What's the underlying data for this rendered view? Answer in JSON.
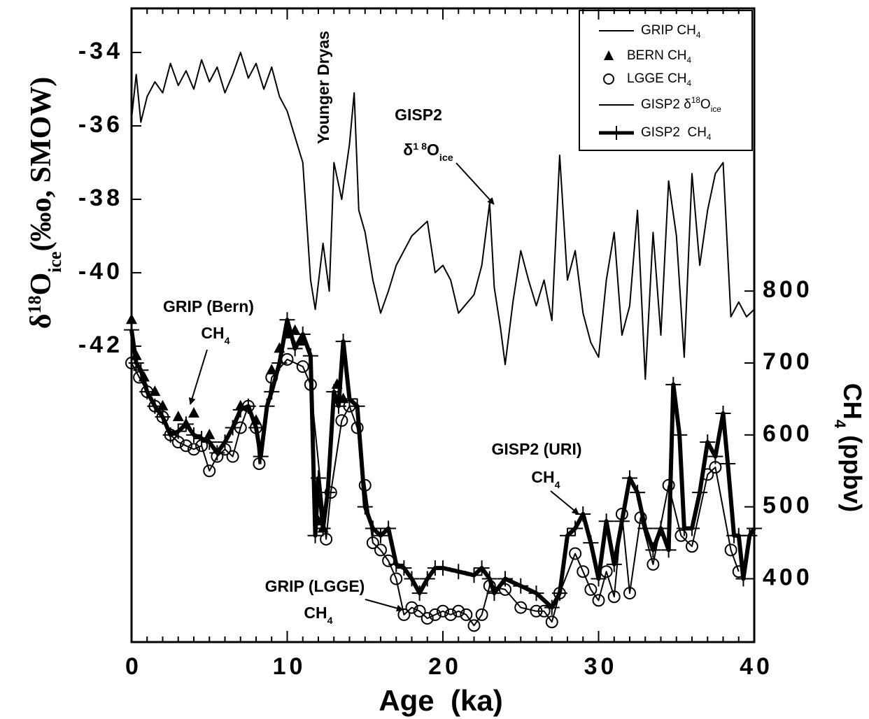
{
  "chart_data": {
    "type": "line",
    "x_label": "Age  (ka)",
    "y_label": [
      {
        "t": "δ"
      },
      {
        "t": "18",
        "sup": true
      },
      {
        "t": "O"
      },
      {
        "t": "ice",
        "sub": true
      },
      {
        "t": "(‰o, SMOW)"
      }
    ],
    "y2_label": [
      {
        "t": "CH"
      },
      {
        "t": "4",
        "sub": true
      },
      {
        "t": " (ppbv)"
      }
    ],
    "xlim": [
      0,
      40
    ],
    "xticks": [
      0,
      10,
      20,
      30,
      40
    ],
    "ylim": [
      -50.06,
      -32.8
    ],
    "yticks": [
      -42,
      -40,
      -38,
      -36,
      -34
    ],
    "y2lim": [
      312,
      1193
    ],
    "y2ticks": [
      400,
      500,
      600,
      700,
      800
    ],
    "legend": "upper right",
    "series": [
      {
        "name": [
          {
            "t": "GRIP CH"
          },
          {
            "t": "4",
            "sub": true
          }
        ],
        "marker": "line",
        "axis": "y2",
        "color": "#000000",
        "width": 2,
        "x": [
          0,
          0.5,
          1,
          1.5,
          2,
          2.5,
          3,
          3.5,
          4,
          4.5,
          5,
          5.5,
          6,
          6.5,
          7,
          7.5,
          8,
          8.2,
          9,
          10,
          11,
          11.5,
          12.5,
          12.8,
          13.5,
          14,
          14.5,
          15,
          15.5,
          16,
          16.5,
          17,
          17.5,
          18,
          18.5,
          19,
          19.5,
          20,
          20.5,
          21,
          21.5,
          22,
          22.5,
          23,
          24,
          25,
          26,
          26.5,
          27,
          27.5,
          28.5,
          29,
          29.5,
          30,
          30.5,
          31,
          31.5,
          32,
          32.7,
          33.5,
          34.5,
          35.3,
          36,
          37,
          37.5,
          38.5,
          39
        ],
        "values": [
          700,
          680,
          660,
          640,
          625,
          600,
          590,
          585,
          580,
          585,
          550,
          570,
          580,
          570,
          610,
          640,
          610,
          560,
          680,
          705,
          695,
          670,
          455,
          520,
          620,
          640,
          610,
          530,
          450,
          440,
          425,
          400,
          350,
          360,
          355,
          345,
          350,
          355,
          350,
          355,
          350,
          335,
          350,
          390,
          385,
          360,
          355,
          355,
          340,
          380,
          435,
          410,
          385,
          370,
          410,
          375,
          490,
          380,
          485,
          420,
          530,
          460,
          445,
          545,
          555,
          440,
          410
        ]
      },
      {
        "name": [
          {
            "t": "BERN CH"
          },
          {
            "t": "4",
            "sub": true
          }
        ],
        "marker": "triangle",
        "axis": "y2",
        "color": "#000000",
        "x": [
          0,
          0.3,
          0.8,
          1.5,
          2,
          3,
          3.5,
          4,
          5,
          7,
          8,
          9,
          9.5,
          10,
          10.5,
          11,
          12,
          12.3,
          13.2,
          13.6
        ],
        "values": [
          760,
          710,
          680,
          660,
          640,
          625,
          615,
          630,
          600,
          640,
          620,
          690,
          720,
          740,
          745,
          730,
          480,
          470,
          670,
          650
        ]
      },
      {
        "name": [
          {
            "t": "LGGE CH"
          },
          {
            "t": "4",
            "sub": true
          }
        ],
        "marker": "circle",
        "axis": "y2",
        "color": "#000000",
        "x": [
          0,
          0.5,
          1,
          1.5,
          2,
          2.5,
          3,
          3.5,
          4,
          4.5,
          5,
          5.5,
          6,
          6.5,
          7,
          7.5,
          8,
          8.2,
          9,
          10,
          11,
          11.5,
          12.5,
          12.8,
          13.5,
          14,
          14.5,
          15,
          15.5,
          16,
          16.5,
          17,
          17.5,
          18,
          18.5,
          19,
          19.5,
          20,
          20.5,
          21,
          21.5,
          22,
          22.5,
          23,
          24,
          25,
          26,
          26.5,
          27,
          27.5,
          28.5,
          29,
          29.5,
          30,
          30.5,
          31,
          31.5,
          32,
          32.7,
          33.5,
          34.5,
          35.3,
          36,
          37,
          37.5,
          38.5,
          39
        ],
        "values": [
          700,
          680,
          660,
          640,
          625,
          600,
          590,
          585,
          580,
          585,
          550,
          570,
          580,
          570,
          610,
          640,
          610,
          560,
          680,
          705,
          695,
          670,
          455,
          520,
          620,
          640,
          610,
          530,
          450,
          440,
          425,
          400,
          350,
          360,
          355,
          345,
          350,
          355,
          350,
          355,
          350,
          335,
          350,
          390,
          385,
          360,
          355,
          355,
          340,
          380,
          435,
          410,
          385,
          370,
          410,
          375,
          490,
          380,
          485,
          420,
          530,
          460,
          445,
          545,
          555,
          440,
          410
        ]
      },
      {
        "name": [
          {
            "t": "GISP2 δ"
          },
          {
            "t": "18",
            "sup": true
          },
          {
            "t": "O"
          },
          {
            "t": "ice",
            "sub": true
          }
        ],
        "marker": "line",
        "axis": "y",
        "color": "#000000",
        "width": 2,
        "x": [
          0,
          0.3,
          0.6,
          1,
          1.5,
          2,
          2.5,
          3,
          3.5,
          4,
          4.5,
          5,
          5.5,
          6,
          6.5,
          7,
          7.5,
          8,
          8.5,
          9,
          9.5,
          10,
          10.5,
          11,
          11.5,
          11.8,
          12.3,
          12.7,
          13,
          13.5,
          14,
          14.3,
          14.6,
          15,
          15.5,
          16,
          16.5,
          17,
          18,
          19,
          19.5,
          20,
          20.5,
          21,
          22,
          22.5,
          23,
          23.3,
          23.7,
          24,
          24.5,
          25,
          25.5,
          26,
          26.5,
          27,
          27.5,
          28,
          28.5,
          29,
          29.5,
          30,
          30.5,
          31,
          31.5,
          32,
          32.5,
          33,
          33.5,
          34,
          34.5,
          35,
          35.5,
          36,
          36.5,
          37,
          37.5,
          38,
          38.5,
          39,
          39.5,
          40
        ],
        "values": [
          -35.8,
          -34.6,
          -35.9,
          -35.2,
          -34.8,
          -35.1,
          -34.3,
          -34.9,
          -34.5,
          -35.0,
          -34.2,
          -34.8,
          -34.4,
          -35.1,
          -34.6,
          -34.0,
          -34.7,
          -34.3,
          -35.0,
          -34.4,
          -35.2,
          -35.6,
          -36.3,
          -37.0,
          -40.2,
          -41.0,
          -39.2,
          -40.5,
          -37.0,
          -38.0,
          -36.5,
          -35.1,
          -38.3,
          -38.9,
          -40.2,
          -41.1,
          -40.5,
          -39.8,
          -39.0,
          -38.6,
          -40.0,
          -39.8,
          -40.2,
          -41.1,
          -40.6,
          -39.8,
          -38.1,
          -40.4,
          -41.5,
          -42.5,
          -40.8,
          -39.4,
          -40.2,
          -40.9,
          -40.2,
          -41.3,
          -36.8,
          -40.2,
          -39.4,
          -41.1,
          -41.9,
          -42.3,
          -40.2,
          -38.9,
          -41.7,
          -40.9,
          -38.3,
          -42.9,
          -38.9,
          -41.7,
          -37.5,
          -39.0,
          -42.3,
          -37.3,
          -39.8,
          -38.3,
          -37.3,
          -37.0,
          -41.2,
          -40.8,
          -41.2,
          -41.0
        ]
      },
      {
        "name": [
          {
            "t": "GISP2  CH"
          },
          {
            "t": "4",
            "sub": true
          }
        ],
        "marker": "line-plus",
        "axis": "y2",
        "color": "#000000",
        "width": 6,
        "x": [
          0,
          0.3,
          0.6,
          1,
          1.5,
          2,
          2.5,
          3,
          3.5,
          4,
          4.5,
          5,
          5.5,
          6,
          6.5,
          7,
          7.5,
          8,
          8.3,
          8.7,
          9,
          9.5,
          10,
          10.5,
          11,
          11.5,
          11.8,
          12,
          12.3,
          12.6,
          13,
          13.3,
          13.6,
          14,
          14.5,
          15,
          15.5,
          16,
          16.5,
          17,
          17.5,
          18,
          18.5,
          19,
          19.5,
          20,
          21,
          22,
          22.5,
          23,
          23.3,
          24,
          25,
          26,
          27,
          27.5,
          28,
          28.5,
          29,
          29.5,
          30,
          30.5,
          31,
          31.5,
          32,
          32.5,
          33,
          33.5,
          34,
          34.5,
          34.8,
          35.2,
          35.5,
          36,
          36.5,
          37,
          37.5,
          38,
          38.3,
          38.7,
          39,
          39.3,
          39.7,
          40
        ],
        "values": [
          746,
          700,
          690,
          660,
          640,
          625,
          600,
          605,
          615,
          600,
          595,
          590,
          575,
          590,
          610,
          635,
          640,
          610,
          570,
          640,
          660,
          700,
          760,
          720,
          740,
          710,
          460,
          540,
          470,
          520,
          660,
          640,
          730,
          650,
          640,
          500,
          470,
          460,
          470,
          420,
          415,
          400,
          380,
          400,
          415,
          415,
          410,
          405,
          415,
          400,
          380,
          400,
          390,
          380,
          360,
          380,
          460,
          470,
          490,
          450,
          400,
          480,
          420,
          480,
          540,
          520,
          470,
          440,
          470,
          440,
          670,
          600,
          470,
          470,
          520,
          590,
          570,
          630,
          560,
          460,
          460,
          400,
          460,
          470
        ]
      }
    ],
    "annotations": [
      {
        "text": [
          {
            "t": "Younger Dryas"
          }
        ]
      },
      {
        "text": [
          {
            "t": "GISP2"
          }
        ]
      },
      {
        "text": [
          {
            "t": "δ"
          },
          {
            "t": "1 8",
            "sup": true
          },
          {
            "t": "O"
          },
          {
            "t": "ice",
            "sub": true
          }
        ]
      },
      {
        "text": [
          {
            "t": "GRIP (Bern)"
          }
        ]
      },
      {
        "text": [
          {
            "t": "CH"
          },
          {
            "t": "4",
            "sub": true
          }
        ]
      },
      {
        "text": [
          {
            "t": "GISP2 (URI)"
          }
        ]
      },
      {
        "text": [
          {
            "t": "CH"
          },
          {
            "t": "4",
            "sub": true
          }
        ]
      },
      {
        "text": [
          {
            "t": "GRIP (LGGE)"
          }
        ]
      },
      {
        "text": [
          {
            "t": "CH"
          },
          {
            "t": "4",
            "sub": true
          }
        ]
      }
    ]
  }
}
